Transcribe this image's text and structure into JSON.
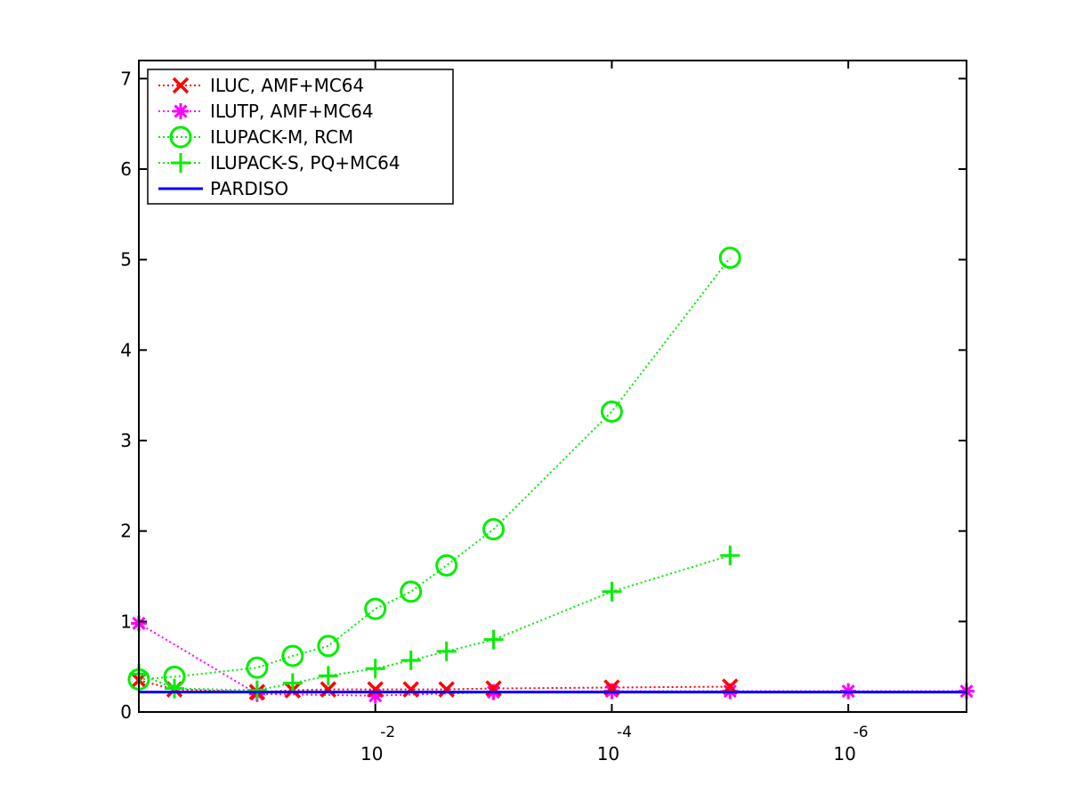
{
  "chart_data": {
    "type": "line",
    "title": "",
    "xlabel": "",
    "ylabel": "",
    "x_scale": "log",
    "x_reversed": true,
    "xlim": [
      1,
      1e-07
    ],
    "ylim": [
      0,
      7.2
    ],
    "grid": false,
    "legend_position": "top-left",
    "x_ticks": [
      {
        "value": 0.01,
        "base": "10",
        "exp": "-2"
      },
      {
        "value": 0.0001,
        "base": "10",
        "exp": "-4"
      },
      {
        "value": 1e-06,
        "base": "10",
        "exp": "-6"
      }
    ],
    "y_ticks": [
      0,
      1,
      2,
      3,
      4,
      5,
      6,
      7
    ],
    "series": [
      {
        "name": "ILUC, AMF+MC64",
        "color": "#ff0000",
        "line_style": "dotted",
        "marker": "x",
        "points": [
          [
            1,
            0.35
          ],
          [
            0.5,
            0.25
          ],
          [
            0.1,
            0.22
          ],
          [
            0.05,
            0.24
          ],
          [
            0.025,
            0.25
          ],
          [
            0.01,
            0.25
          ],
          [
            0.005,
            0.25
          ],
          [
            0.0025,
            0.25
          ],
          [
            0.001,
            0.26
          ],
          [
            0.0001,
            0.27
          ],
          [
            1e-05,
            0.28
          ]
        ]
      },
      {
        "name": "ILUTP, AMF+MC64",
        "color": "#ff00ff",
        "line_style": "dotted",
        "marker": "asterisk",
        "points": [
          [
            1,
            0.98
          ],
          [
            0.1,
            0.2
          ],
          [
            0.01,
            0.18
          ],
          [
            0.001,
            0.22
          ],
          [
            0.0001,
            0.23
          ],
          [
            1e-05,
            0.23
          ],
          [
            1e-06,
            0.23
          ],
          [
            1e-07,
            0.23
          ]
        ]
      },
      {
        "name": "ILUPACK-M, RCM",
        "color": "#00ee00",
        "line_style": "dotted",
        "marker": "circle",
        "points": [
          [
            1,
            0.36
          ],
          [
            0.5,
            0.39
          ],
          [
            0.1,
            0.49
          ],
          [
            0.05,
            0.62
          ],
          [
            0.025,
            0.73
          ],
          [
            0.01,
            1.14
          ],
          [
            0.005,
            1.33
          ],
          [
            0.0025,
            1.62
          ],
          [
            0.001,
            2.02
          ],
          [
            0.0001,
            3.32
          ],
          [
            1e-05,
            5.02
          ]
        ]
      },
      {
        "name": "ILUPACK-S, PQ+MC64",
        "color": "#00ee00",
        "line_style": "dotted",
        "marker": "plus",
        "points": [
          [
            1,
            0.42
          ],
          [
            0.5,
            0.26
          ],
          [
            0.1,
            0.24
          ],
          [
            0.05,
            0.32
          ],
          [
            0.025,
            0.4
          ],
          [
            0.01,
            0.48
          ],
          [
            0.005,
            0.57
          ],
          [
            0.0025,
            0.67
          ],
          [
            0.001,
            0.8
          ],
          [
            0.0001,
            1.33
          ],
          [
            1e-05,
            1.73
          ]
        ]
      },
      {
        "name": "PARDISO",
        "color": "#0000ff",
        "line_style": "solid",
        "marker": "none",
        "points": [
          [
            1,
            0.22
          ],
          [
            1e-07,
            0.22
          ]
        ]
      }
    ]
  }
}
